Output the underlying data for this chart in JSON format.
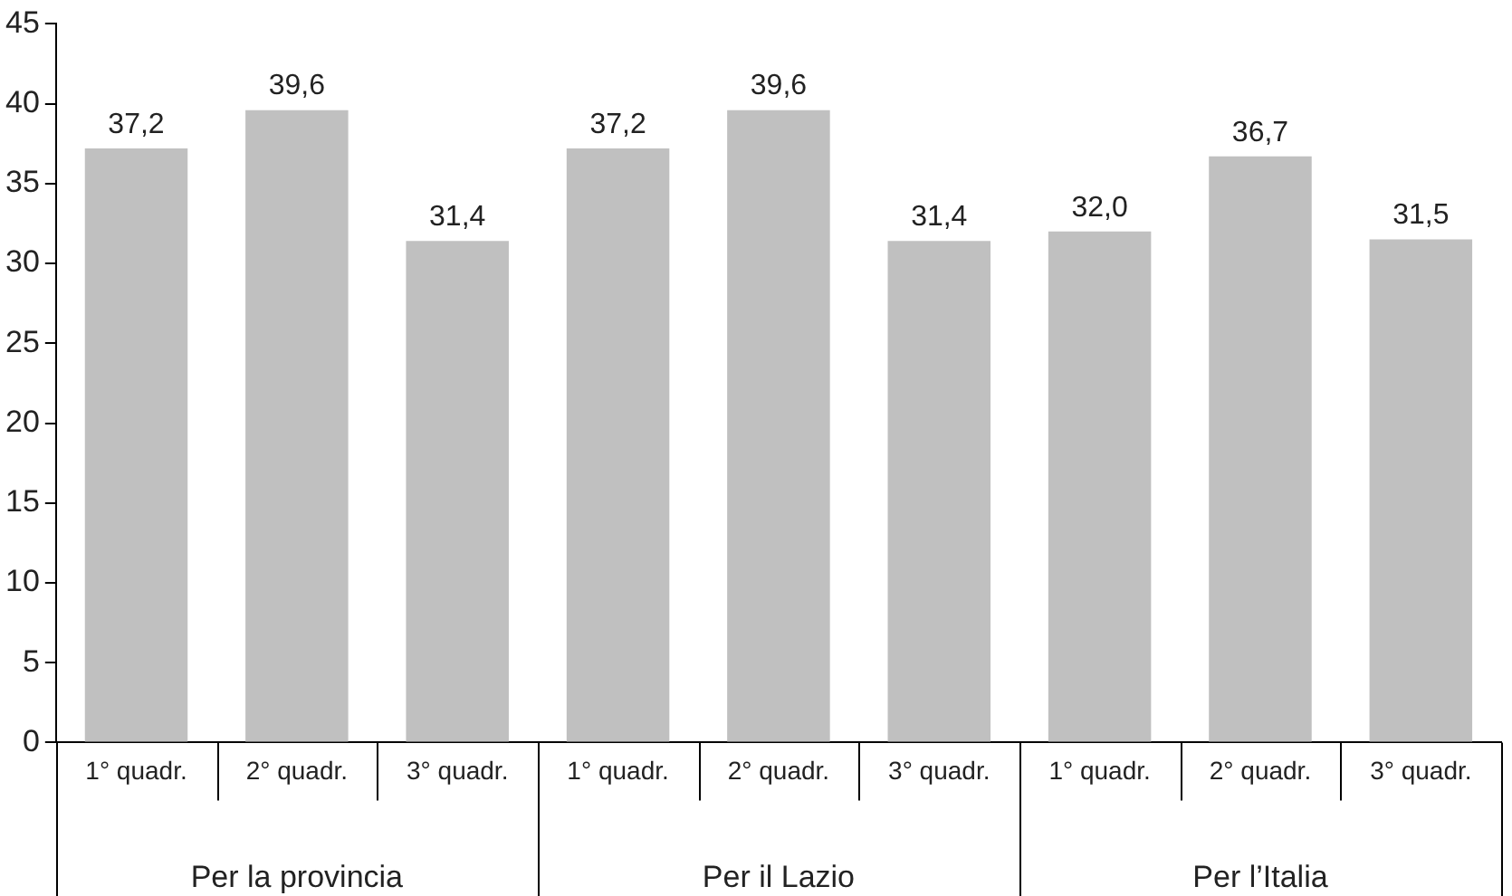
{
  "chart_data": {
    "type": "bar",
    "categories": [
      "1° quadr.",
      "2° quadr.",
      "3° quadr.",
      "1° quadr.",
      "2° quadr.",
      "3° quadr.",
      "1° quadr.",
      "2° quadr.",
      "3° quadr."
    ],
    "values": [
      37.2,
      39.6,
      31.4,
      37.2,
      39.6,
      31.4,
      32.0,
      36.7,
      31.5
    ],
    "value_labels": [
      "37,2",
      "39,6",
      "31,4",
      "37,2",
      "39,6",
      "31,4",
      "32,0",
      "36,7",
      "31,5"
    ],
    "color": "#c0c0c0",
    "ylim": [
      0,
      45
    ],
    "yticks": [
      0,
      5,
      10,
      15,
      20,
      25,
      30,
      35,
      40,
      45
    ],
    "annotations": [
      "Per la provincia",
      "Per il Lazio",
      "Per l’Italia"
    ],
    "grid": false,
    "legend": false
  }
}
